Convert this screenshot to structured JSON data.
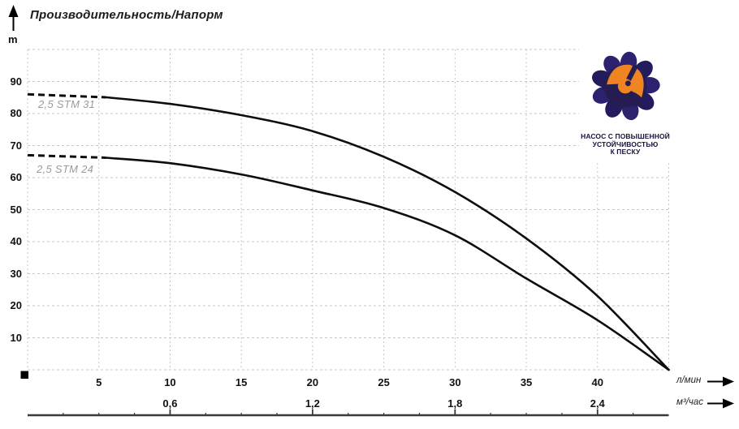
{
  "title": "Производительность/Напорм",
  "y_axis": {
    "unit": "m",
    "ticks": [
      90,
      80,
      70,
      60,
      50,
      40,
      30,
      20,
      10
    ]
  },
  "x_axis_lmin": {
    "unit": "л/мин",
    "ticks": [
      5,
      10,
      15,
      20,
      25,
      30,
      35,
      40
    ]
  },
  "x_axis_m3h": {
    "unit": "м³/час",
    "ticks": [
      {
        "label": "0,6",
        "q": 10
      },
      {
        "label": "1,2",
        "q": 20
      },
      {
        "label": "1,8",
        "q": 30
      },
      {
        "label": "2,4",
        "q": 40
      }
    ]
  },
  "badge": {
    "lines": [
      "НАСОС С ПОВЫШЕННОЙ",
      "УСТОЙЧИВОСТЬЮ",
      "К ПЕСКУ"
    ]
  },
  "colors": {
    "curve": "#0d0d0d",
    "grid": "#c7c7c7",
    "series_label": "#9b9b9b",
    "axis_text": "#111111",
    "scale_bar": "#383838",
    "badge_navy": "#2c2270",
    "badge_navy_dark": "#251c52",
    "badge_orange": "#ee8422"
  },
  "chart_data": {
    "type": "line",
    "title": "Производительность/Напорм",
    "ylabel": "m",
    "xlabel_primary": "л/мин",
    "xlabel_secondary": "м³/час",
    "xlim": [
      0,
      45
    ],
    "ylim": [
      0,
      100
    ],
    "grid": true,
    "x_gridline_step": 5,
    "y_gridline_step": 10,
    "series": [
      {
        "name": "2,5 STM 31",
        "x": [
          0,
          5,
          10,
          15,
          20,
          25,
          30,
          35,
          40,
          45
        ],
        "y": [
          86,
          85.3,
          83,
          79.5,
          74.5,
          66.5,
          55.5,
          41,
          23,
          0
        ],
        "dash_end_x": 5.5
      },
      {
        "name": "2,5 STM 24",
        "x": [
          0,
          5,
          10,
          15,
          20,
          25,
          30,
          35,
          40,
          45
        ],
        "y": [
          67,
          66.4,
          64.5,
          61,
          56,
          50.5,
          42,
          28.5,
          15.5,
          0
        ],
        "dash_end_x": 5.5
      }
    ]
  }
}
